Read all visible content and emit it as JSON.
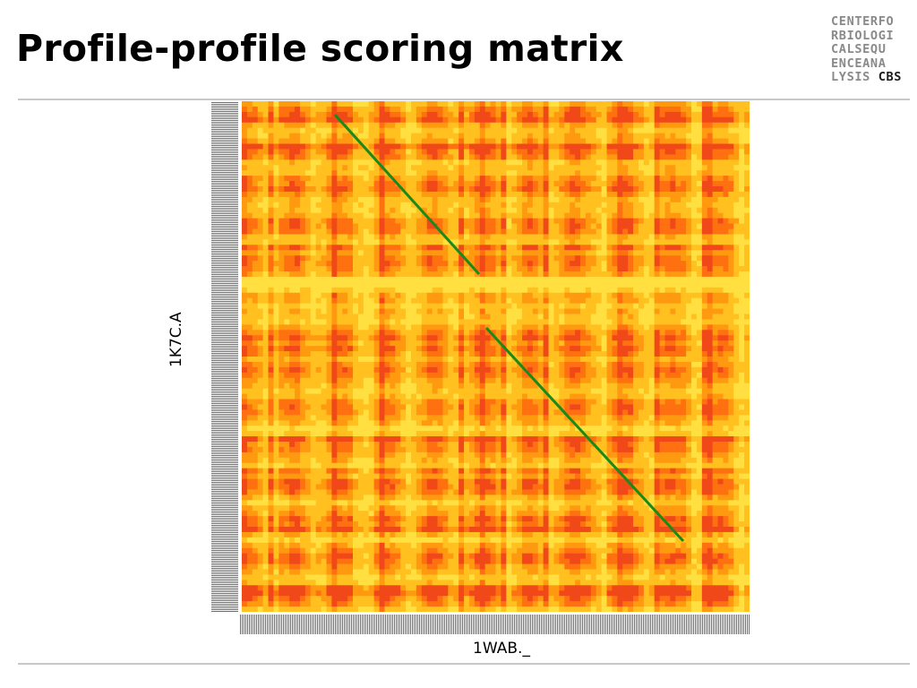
{
  "slide": {
    "title": "Profile-profile scoring matrix",
    "logo_lines": [
      "CENTERFO",
      "RBIOLOGI",
      "CALSEQU",
      "ENCEANA"
    ],
    "logo_last_prefix": "LYSIS ",
    "logo_last_bold": "CBS"
  },
  "chart_data": {
    "type": "heatmap",
    "xlabel": "1WAB._",
    "ylabel": "1K7C.A",
    "colormap": [
      "#ffe040",
      "#ffc020",
      "#ff9a10",
      "#ff7010",
      "#f04818"
    ],
    "diagonal_color": "#1a8a1a"
  }
}
